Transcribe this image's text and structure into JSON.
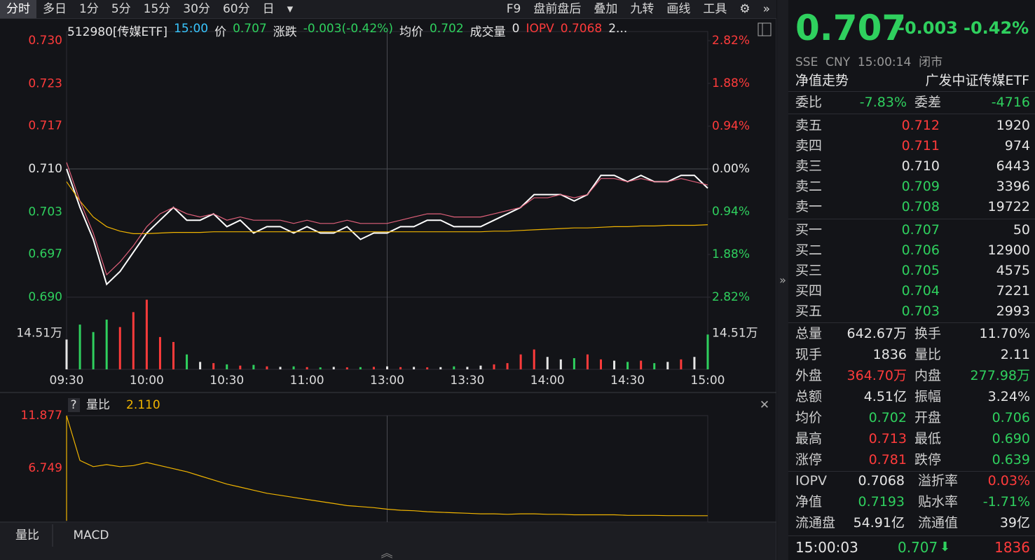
{
  "toolbar": {
    "tabs": [
      "分时",
      "多日",
      "1分",
      "5分",
      "15分",
      "30分",
      "60分",
      "日"
    ],
    "tools": [
      "F9",
      "盘前盘后",
      "叠加",
      "九转",
      "画线",
      "工具"
    ]
  },
  "info": [
    {
      "text": "512980[传媒ETF]",
      "color": "white"
    },
    {
      "text": "15:00",
      "color": "cyan"
    },
    {
      "text": "价",
      "color": "white"
    },
    {
      "text": "0.707",
      "color": "green"
    },
    {
      "text": "涨跌",
      "color": "white"
    },
    {
      "text": "-0.003(-0.42%)",
      "color": "green"
    },
    {
      "text": "均价",
      "color": "white"
    },
    {
      "text": "0.702",
      "color": "green"
    },
    {
      "text": "成交量",
      "color": "white"
    },
    {
      "text": "0",
      "color": "white"
    },
    {
      "text": "IOPV",
      "color": "red"
    },
    {
      "text": "0.7068",
      "color": "red"
    },
    {
      "text": "2...",
      "color": "white"
    }
  ],
  "chart_data": [
    {
      "type": "line",
      "x": [
        0,
        5,
        10,
        15,
        20,
        25,
        30,
        35,
        40,
        45,
        50,
        55,
        60,
        65,
        70,
        75,
        80,
        85,
        90,
        95,
        100,
        105,
        110,
        115,
        120,
        125,
        130,
        135,
        140,
        145,
        150,
        155,
        160,
        165,
        170,
        175,
        180,
        185,
        190,
        195,
        200,
        205,
        210,
        215,
        220,
        225,
        230,
        235,
        240
      ],
      "series": [
        {
          "color": "#ffffff",
          "values": [
            0.71,
            0.704,
            0.699,
            0.692,
            0.694,
            0.697,
            0.7,
            0.702,
            0.704,
            0.702,
            0.702,
            0.703,
            0.701,
            0.702,
            0.7,
            0.701,
            0.701,
            0.7,
            0.701,
            0.7,
            0.7,
            0.701,
            0.699,
            0.7,
            0.7,
            0.701,
            0.701,
            0.702,
            0.702,
            0.701,
            0.701,
            0.701,
            0.702,
            0.703,
            0.704,
            0.706,
            0.706,
            0.706,
            0.705,
            0.706,
            0.709,
            0.709,
            0.708,
            0.709,
            0.708,
            0.708,
            0.709,
            0.709,
            0.707
          ]
        },
        {
          "color": "#f0b400",
          "values": [
            0.708,
            0.705,
            0.7025,
            0.701,
            0.7003,
            0.6999,
            0.6999,
            0.7,
            0.7001,
            0.7001,
            0.7001,
            0.7002,
            0.7002,
            0.7002,
            0.7002,
            0.7002,
            0.7002,
            0.7002,
            0.7002,
            0.7002,
            0.7002,
            0.7002,
            0.7002,
            0.7002,
            0.7002,
            0.7002,
            0.7002,
            0.7002,
            0.7002,
            0.7002,
            0.7002,
            0.7002,
            0.7003,
            0.7003,
            0.7004,
            0.7005,
            0.7006,
            0.7007,
            0.7008,
            0.7008,
            0.7009,
            0.701,
            0.701,
            0.7011,
            0.7011,
            0.7012,
            0.7012,
            0.7012,
            0.7013
          ]
        },
        {
          "color": "#e0607a",
          "values": [
            0.711,
            0.705,
            0.7,
            0.6935,
            0.6955,
            0.698,
            0.701,
            0.703,
            0.704,
            0.703,
            0.7025,
            0.703,
            0.702,
            0.7025,
            0.702,
            0.702,
            0.702,
            0.7015,
            0.702,
            0.7015,
            0.7015,
            0.702,
            0.7015,
            0.7015,
            0.7015,
            0.702,
            0.7025,
            0.703,
            0.703,
            0.7025,
            0.7025,
            0.7025,
            0.703,
            0.7035,
            0.704,
            0.7055,
            0.7055,
            0.706,
            0.7055,
            0.706,
            0.7085,
            0.7085,
            0.708,
            0.7085,
            0.708,
            0.708,
            0.7085,
            0.708,
            0.7075
          ]
        }
      ],
      "xlim": [
        0,
        240
      ],
      "ylim": [
        0.69,
        0.73
      ],
      "yticks": [
        {
          "value": 0.73,
          "label": "0.730"
        },
        {
          "value": 0.7233,
          "label": "0.723"
        },
        {
          "value": 0.7167,
          "label": "0.717"
        },
        {
          "value": 0.71,
          "label": "0.710"
        },
        {
          "value": 0.7033,
          "label": "0.703"
        },
        {
          "value": 0.6967,
          "label": "0.697"
        },
        {
          "value": 0.69,
          "label": "0.690"
        }
      ],
      "y2lim": [
        -2.82,
        2.82
      ],
      "y2ticks": [
        {
          "value": 2.82,
          "label": "2.82%"
        },
        {
          "value": 1.88,
          "label": "1.88%"
        },
        {
          "value": 0.94,
          "label": "0.94%"
        },
        {
          "value": 0,
          "label": "0.00%"
        },
        {
          "value": -0.94,
          "label": "0.94%"
        },
        {
          "value": -1.88,
          "label": "1.88%"
        },
        {
          "value": -2.82,
          "label": "2.82%"
        }
      ]
    },
    {
      "type": "bar",
      "x": [
        0,
        5,
        10,
        15,
        20,
        25,
        30,
        35,
        40,
        45,
        50,
        55,
        60,
        65,
        70,
        75,
        80,
        85,
        90,
        95,
        100,
        105,
        110,
        115,
        120,
        125,
        130,
        135,
        140,
        145,
        150,
        155,
        160,
        165,
        170,
        175,
        180,
        185,
        190,
        195,
        200,
        205,
        210,
        215,
        220,
        225,
        230,
        235,
        240
      ],
      "values": [
        120000,
        180000,
        150000,
        200000,
        170000,
        230000,
        280000,
        130000,
        110000,
        60000,
        30000,
        25000,
        20000,
        15000,
        18000,
        12000,
        10000,
        12000,
        9000,
        8000,
        10000,
        8000,
        9000,
        10000,
        12000,
        9000,
        10000,
        8000,
        9000,
        12000,
        10000,
        15000,
        20000,
        25000,
        60000,
        80000,
        50000,
        40000,
        45000,
        60000,
        40000,
        35000,
        30000,
        35000,
        25000,
        30000,
        40000,
        50000,
        140000
      ],
      "xlim": [
        0,
        240
      ],
      "xticks": [
        {
          "value": 0,
          "label": "09:30"
        },
        {
          "value": 30,
          "label": "10:00"
        },
        {
          "value": 60,
          "label": "10:30"
        },
        {
          "value": 90,
          "label": "11:00"
        },
        {
          "value": 120,
          "label": "13:00"
        },
        {
          "value": 150,
          "label": "13:30"
        },
        {
          "value": 180,
          "label": "14:00"
        },
        {
          "value": 210,
          "label": "14:30"
        },
        {
          "value": 240,
          "label": "15:00"
        }
      ],
      "ylim": [
        0,
        290200
      ],
      "yticks": [
        {
          "value": 145100,
          "label": "14.51万"
        }
      ]
    },
    {
      "type": "line",
      "x": [
        0,
        5,
        10,
        15,
        20,
        25,
        30,
        35,
        40,
        45,
        50,
        55,
        60,
        65,
        70,
        75,
        80,
        85,
        90,
        95,
        100,
        105,
        110,
        115,
        120,
        125,
        130,
        135,
        140,
        145,
        150,
        155,
        160,
        165,
        170,
        175,
        180,
        185,
        190,
        195,
        200,
        205,
        210,
        215,
        220,
        225,
        230,
        235,
        240
      ],
      "values": [
        11.877,
        7.5,
        6.9,
        7.1,
        6.9,
        7.0,
        7.3,
        7.0,
        6.7,
        6.4,
        6.0,
        5.6,
        5.2,
        4.9,
        4.6,
        4.3,
        4.1,
        3.9,
        3.7,
        3.5,
        3.3,
        3.1,
        3.0,
        2.9,
        2.75,
        2.65,
        2.6,
        2.5,
        2.45,
        2.4,
        2.35,
        2.3,
        2.3,
        2.25,
        2.3,
        2.3,
        2.25,
        2.25,
        2.2,
        2.2,
        2.2,
        2.2,
        2.15,
        2.15,
        2.15,
        2.12,
        2.12,
        2.11,
        2.11
      ],
      "color": "#f0b400",
      "xlim": [
        0,
        240
      ],
      "ylim": [
        1.621,
        11.877
      ],
      "yticks": [
        11.877,
        6.749
      ]
    }
  ],
  "ratio_panel": {
    "help": "?",
    "label": "量比",
    "value": "2.110"
  },
  "bottom_tabs": [
    "量比",
    "MACD"
  ],
  "quote": {
    "price": "0.707",
    "change": "-0.003",
    "pct": "-0.42%",
    "market": "SSE  CNY  15:00:14  闭市",
    "nav_title": "净值走势",
    "name": "广发中证传媒ETF",
    "committee": [
      {
        "label": "委比",
        "value": "-7.83%",
        "color": "green"
      },
      {
        "label": "委差",
        "value": "-4716",
        "color": "green"
      }
    ],
    "asks": [
      {
        "label": "卖五",
        "price": "0.712",
        "volume": "1920",
        "color": "red"
      },
      {
        "label": "卖四",
        "price": "0.711",
        "volume": "974",
        "color": "red"
      },
      {
        "label": "卖三",
        "price": "0.710",
        "volume": "6443",
        "color": "white"
      },
      {
        "label": "卖二",
        "price": "0.709",
        "volume": "3396",
        "color": "green"
      },
      {
        "label": "卖一",
        "price": "0.708",
        "volume": "19722",
        "color": "green"
      }
    ],
    "bids": [
      {
        "label": "买一",
        "price": "0.707",
        "volume": "50",
        "color": "green"
      },
      {
        "label": "买二",
        "price": "0.706",
        "volume": "12900",
        "color": "green"
      },
      {
        "label": "买三",
        "price": "0.705",
        "volume": "4575",
        "color": "green"
      },
      {
        "label": "买四",
        "price": "0.704",
        "volume": "7221",
        "color": "green"
      },
      {
        "label": "买五",
        "price": "0.703",
        "volume": "2993",
        "color": "green"
      }
    ],
    "stats": [
      [
        {
          "label": "总量",
          "value": "642.67万",
          "color": "white"
        },
        {
          "label": "换手",
          "value": "11.70%",
          "color": "white"
        }
      ],
      [
        {
          "label": "现手",
          "value": "1836",
          "color": "white"
        },
        {
          "label": "量比",
          "value": "2.11",
          "color": "white"
        }
      ],
      [
        {
          "label": "外盘",
          "value": "364.70万",
          "color": "red"
        },
        {
          "label": "内盘",
          "value": "277.98万",
          "color": "green"
        }
      ],
      [
        {
          "label": "总额",
          "value": "4.51亿",
          "color": "white"
        },
        {
          "label": "振幅",
          "value": "3.24%",
          "color": "white"
        }
      ],
      [
        {
          "label": "均价",
          "value": "0.702",
          "color": "green"
        },
        {
          "label": "开盘",
          "value": "0.706",
          "color": "green"
        }
      ],
      [
        {
          "label": "最高",
          "value": "0.713",
          "color": "red"
        },
        {
          "label": "最低",
          "value": "0.690",
          "color": "green"
        }
      ],
      [
        {
          "label": "涨停",
          "value": "0.781",
          "color": "red"
        },
        {
          "label": "跌停",
          "value": "0.639",
          "color": "green"
        }
      ]
    ],
    "fund": [
      [
        {
          "label": "IOPV",
          "value": "0.7068",
          "color": "white"
        },
        {
          "label": "溢折率",
          "value": "0.03%",
          "color": "red"
        }
      ],
      [
        {
          "label": "净值",
          "value": "0.7193",
          "color": "green"
        },
        {
          "label": "贴水率",
          "value": "-1.71%",
          "color": "green"
        }
      ],
      [
        {
          "label": "流通盘",
          "value": "54.91亿",
          "color": "white"
        },
        {
          "label": "流通值",
          "value": "39亿",
          "color": "white"
        }
      ]
    ],
    "tick": {
      "time": "15:00:03",
      "price": "0.707",
      "volume": "1836"
    }
  }
}
